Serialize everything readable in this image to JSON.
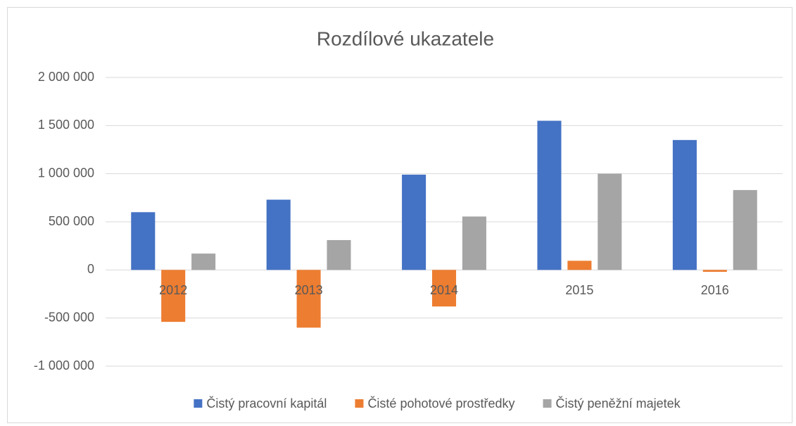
{
  "chart_data": {
    "type": "bar",
    "title": "Rozdílové ukazatele",
    "categories": [
      "2012",
      "2013",
      "2014",
      "2015",
      "2016"
    ],
    "series": [
      {
        "name": "Čistý pracovní kapitál",
        "color": "#4472c4",
        "values": [
          600000,
          730000,
          990000,
          1550000,
          1350000
        ]
      },
      {
        "name": "Čisté pohotové prostředky",
        "color": "#ed7d31",
        "values": [
          -540000,
          -600000,
          -380000,
          95000,
          -20000
        ]
      },
      {
        "name": "Čistý peněžní majetek",
        "color": "#a5a5a5",
        "values": [
          170000,
          310000,
          555000,
          1000000,
          830000
        ]
      }
    ],
    "ylim": [
      -1000000,
      2000000
    ],
    "yticks": [
      {
        "value": -1000000,
        "label": "-1 000 000"
      },
      {
        "value": -500000,
        "label": "-500 000"
      },
      0,
      {
        "value": 500000,
        "label": "500 000"
      },
      {
        "value": 1000000,
        "label": "1 000 000"
      },
      {
        "value": 1500000,
        "label": "1 500 000"
      },
      {
        "value": 2000000,
        "label": "2 000 000"
      }
    ],
    "grid": true,
    "legend": "bottom"
  }
}
